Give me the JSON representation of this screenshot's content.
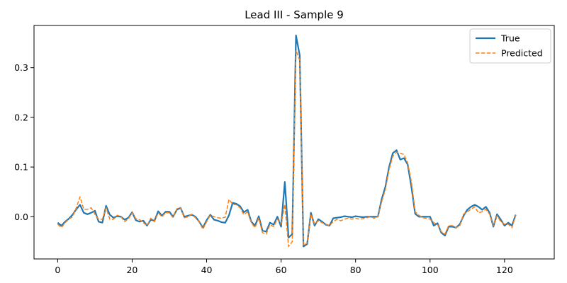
{
  "chart_data": {
    "type": "line",
    "title": "Lead III - Sample 9",
    "xlabel": "",
    "ylabel": "",
    "xlim": [
      -6.35,
      133.35
    ],
    "ylim": [
      -0.085,
      0.385
    ],
    "xticks": [
      0,
      20,
      40,
      60,
      80,
      100,
      120
    ],
    "yticks": [
      0.0,
      0.1,
      0.2,
      0.3
    ],
    "ytick_labels": [
      "0.0",
      "0.1",
      "0.2",
      "0.3"
    ],
    "grid": false,
    "legend_position": "top-right",
    "series": [
      {
        "name": "True",
        "color": "#1f77b4",
        "style": "solid",
        "values": [
          -0.012,
          -0.018,
          -0.01,
          -0.004,
          0.004,
          0.015,
          0.024,
          0.008,
          0.005,
          0.008,
          0.012,
          -0.01,
          -0.012,
          0.022,
          0.004,
          -0.002,
          0.001,
          0.0,
          -0.006,
          -0.002,
          0.009,
          -0.007,
          -0.01,
          -0.008,
          -0.018,
          -0.006,
          -0.008,
          0.011,
          0.002,
          0.01,
          0.01,
          0.0,
          0.014,
          0.018,
          0.0,
          0.002,
          0.004,
          0.0,
          -0.01,
          -0.022,
          -0.007,
          0.004,
          -0.006,
          -0.008,
          -0.011,
          -0.012,
          0.003,
          0.028,
          0.026,
          0.021,
          0.009,
          0.014,
          -0.01,
          -0.018,
          0.001,
          -0.028,
          -0.03,
          -0.012,
          -0.016,
          0.0,
          -0.02,
          0.07,
          -0.042,
          -0.035,
          0.365,
          0.325,
          -0.06,
          -0.055,
          0.008,
          -0.018,
          -0.005,
          -0.01,
          -0.016,
          -0.018,
          -0.003,
          -0.002,
          -0.001,
          0.001,
          0.0,
          -0.001,
          0.001,
          0.0,
          -0.001,
          0.0,
          0.0,
          0.0,
          0.0,
          0.035,
          0.06,
          0.1,
          0.128,
          0.134,
          0.115,
          0.118,
          0.105,
          0.06,
          0.006,
          0.0,
          0.0,
          0.0,
          0.0,
          -0.018,
          -0.013,
          -0.032,
          -0.038,
          -0.02,
          -0.02,
          -0.022,
          -0.015,
          0.002,
          0.014,
          0.02,
          0.024,
          0.02,
          0.014,
          0.02,
          0.008,
          -0.02,
          0.005,
          -0.006,
          -0.018,
          -0.012,
          -0.018,
          0.004
        ]
      },
      {
        "name": "Predicted",
        "color": "#ff7f0e",
        "style": "dashed",
        "values": [
          -0.015,
          -0.022,
          -0.012,
          -0.005,
          0.0,
          0.018,
          0.04,
          0.015,
          0.015,
          0.018,
          0.005,
          -0.005,
          -0.005,
          0.018,
          -0.005,
          -0.005,
          0.003,
          0.0,
          -0.01,
          -0.004,
          0.008,
          -0.004,
          -0.006,
          -0.012,
          -0.018,
          -0.003,
          -0.01,
          0.008,
          0.0,
          0.008,
          0.008,
          -0.002,
          0.016,
          0.018,
          -0.002,
          0.0,
          0.005,
          -0.002,
          -0.01,
          -0.025,
          -0.01,
          0.003,
          0.0,
          -0.002,
          -0.003,
          -0.001,
          0.035,
          0.025,
          0.024,
          0.018,
          0.004,
          0.01,
          -0.012,
          -0.022,
          -0.003,
          -0.032,
          -0.035,
          -0.016,
          -0.02,
          -0.005,
          -0.015,
          0.025,
          -0.06,
          -0.05,
          0.335,
          0.315,
          -0.058,
          -0.053,
          0.005,
          -0.015,
          -0.008,
          -0.012,
          -0.015,
          -0.018,
          -0.01,
          -0.005,
          -0.008,
          -0.005,
          -0.003,
          -0.005,
          -0.003,
          -0.005,
          -0.004,
          -0.002,
          0.0,
          -0.003,
          0.0,
          0.03,
          0.055,
          0.095,
          0.122,
          0.13,
          0.128,
          0.125,
          0.108,
          0.07,
          0.01,
          0.003,
          -0.002,
          -0.003,
          -0.005,
          -0.012,
          -0.015,
          -0.03,
          -0.035,
          -0.018,
          -0.018,
          -0.022,
          -0.018,
          0.005,
          0.01,
          0.015,
          0.02,
          0.008,
          0.01,
          0.015,
          0.005,
          -0.018,
          0.002,
          -0.01,
          -0.015,
          -0.015,
          -0.022,
          0.003
        ]
      }
    ]
  }
}
